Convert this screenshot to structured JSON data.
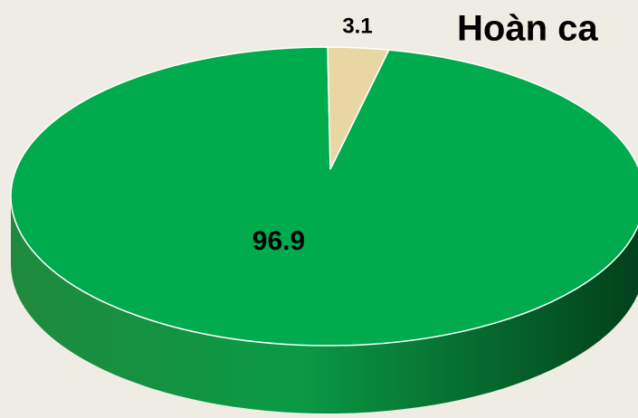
{
  "chart_data": {
    "type": "pie",
    "title": "Hoàn ca",
    "values": [
      96.9,
      3.1
    ],
    "colors": [
      "#00ab4e",
      "#e9d7a3"
    ]
  }
}
